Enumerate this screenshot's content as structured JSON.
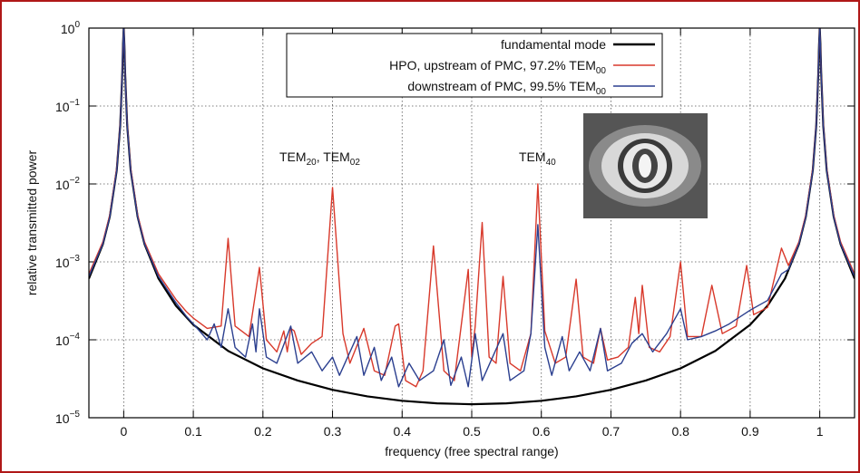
{
  "chart_data": {
    "type": "line",
    "y_label": "relative transmitted power",
    "x_label": "frequency (free spectral range)",
    "log_y": true,
    "grid": true,
    "xlim": [
      -0.05,
      1.05
    ],
    "ylim": [
      1e-05,
      1
    ],
    "xticks": [
      0,
      0.1,
      0.2,
      0.3,
      0.4,
      0.5,
      0.6,
      0.7,
      0.8,
      0.9,
      1
    ],
    "yticks": [
      {
        "value": 1e-05,
        "label": "10",
        "sup": "−5"
      },
      {
        "value": 0.0001,
        "label": "10",
        "sup": "−4"
      },
      {
        "value": 0.001,
        "label": "10",
        "sup": "−3"
      },
      {
        "value": 0.01,
        "label": "10",
        "sup": "−2"
      },
      {
        "value": 0.1,
        "label": "10",
        "sup": "−1"
      },
      {
        "value": 1,
        "label": "10",
        "sup": "0"
      }
    ],
    "legend_position": "top",
    "annotations": [
      {
        "parts": [
          {
            "text": "TEM"
          },
          {
            "sub": "20"
          },
          {
            "text": ", TEM"
          },
          {
            "sub": "02"
          }
        ]
      },
      {
        "parts": [
          {
            "text": "TEM"
          },
          {
            "sub": "40"
          }
        ]
      }
    ],
    "series": [
      {
        "name": "fundamental mode",
        "color": "#000000",
        "x": [
          -0.05,
          -0.03,
          -0.02,
          -0.01,
          -0.005,
          -0.002,
          -0.001,
          0,
          0.001,
          0.002,
          0.005,
          0.01,
          0.02,
          0.03,
          0.05,
          0.075,
          0.1,
          0.15,
          0.2,
          0.25,
          0.3,
          0.35,
          0.4,
          0.45,
          0.5,
          0.55,
          0.6,
          0.65,
          0.7,
          0.75,
          0.8,
          0.85,
          0.9,
          0.925,
          0.95,
          0.97,
          0.98,
          0.99,
          0.995,
          0.998,
          0.999,
          1,
          1.001,
          1.002,
          1.005,
          1.01,
          1.02,
          1.03,
          1.05
        ],
        "values": [
          0.00061,
          0.00168,
          0.0038,
          0.015,
          0.057,
          0.27,
          0.6,
          1,
          0.6,
          0.27,
          0.057,
          0.015,
          0.0038,
          0.00168,
          0.00061,
          0.000274,
          0.000156,
          7.2e-05,
          4.3e-05,
          3e-05,
          2.28e-05,
          1.88e-05,
          1.65e-05,
          1.53e-05,
          1.49e-05,
          1.53e-05,
          1.65e-05,
          1.88e-05,
          2.28e-05,
          3e-05,
          4.3e-05,
          7.2e-05,
          0.000156,
          0.000274,
          0.00061,
          0.00168,
          0.0038,
          0.015,
          0.057,
          0.27,
          0.6,
          1,
          0.6,
          0.27,
          0.057,
          0.015,
          0.0038,
          0.00168,
          0.00061
        ]
      },
      {
        "name": "HPO, upstream of PMC, 97.2% TEM",
        "name_sub": "00",
        "color": "#d8392b",
        "x": [
          -0.05,
          -0.03,
          -0.02,
          -0.01,
          -0.005,
          -0.002,
          -0.001,
          0,
          0.001,
          0.002,
          0.005,
          0.01,
          0.02,
          0.03,
          0.05,
          0.075,
          0.09,
          0.1,
          0.12,
          0.14,
          0.15,
          0.16,
          0.18,
          0.195,
          0.205,
          0.22,
          0.23,
          0.235,
          0.24,
          0.245,
          0.255,
          0.27,
          0.285,
          0.3,
          0.315,
          0.325,
          0.345,
          0.36,
          0.375,
          0.39,
          0.395,
          0.405,
          0.42,
          0.43,
          0.445,
          0.46,
          0.475,
          0.495,
          0.5,
          0.505,
          0.515,
          0.525,
          0.535,
          0.545,
          0.555,
          0.57,
          0.585,
          0.595,
          0.605,
          0.62,
          0.635,
          0.65,
          0.66,
          0.675,
          0.685,
          0.695,
          0.71,
          0.725,
          0.735,
          0.74,
          0.745,
          0.755,
          0.77,
          0.785,
          0.8,
          0.81,
          0.83,
          0.845,
          0.86,
          0.88,
          0.895,
          0.905,
          0.925,
          0.945,
          0.955,
          0.97,
          0.98,
          0.99,
          0.995,
          0.998,
          0.999,
          1,
          1.001,
          1.002,
          1.005,
          1.01,
          1.02,
          1.03,
          1.05
        ],
        "values": [
          0.0007,
          0.0018,
          0.004,
          0.016,
          0.06,
          0.28,
          0.6,
          1,
          0.6,
          0.28,
          0.06,
          0.016,
          0.004,
          0.0018,
          0.0007,
          0.00033,
          0.00023,
          0.00019,
          0.00014,
          0.00015,
          0.002,
          0.00015,
          0.00011,
          0.00085,
          0.0001,
          7e-05,
          0.00013,
          7e-05,
          0.00014,
          0.00013,
          6.5e-05,
          9e-05,
          0.00011,
          0.009,
          0.00012,
          5e-05,
          0.00014,
          4e-05,
          3.5e-05,
          0.00015,
          0.00016,
          3e-05,
          2.5e-05,
          4e-05,
          0.0016,
          4e-05,
          3e-05,
          0.0008,
          6e-05,
          0.00015,
          0.0032,
          6e-05,
          5e-05,
          0.00065,
          5e-05,
          4e-05,
          0.00012,
          0.01,
          0.00013,
          5e-05,
          6e-05,
          0.0006,
          6e-05,
          5e-05,
          0.00014,
          5.5e-05,
          6e-05,
          8e-05,
          0.00035,
          0.00012,
          0.0005,
          8e-05,
          7e-05,
          0.00011,
          0.001,
          0.00011,
          0.00011,
          0.0005,
          0.00012,
          0.00015,
          0.0009,
          0.00021,
          0.00026,
          0.0015,
          0.0009,
          0.0018,
          0.004,
          0.016,
          0.06,
          0.28,
          0.6,
          1,
          0.6,
          0.28,
          0.06,
          0.016,
          0.004,
          0.0018,
          0.0007
        ]
      },
      {
        "name": "downstream of PMC, 99.5% TEM",
        "name_sub": "00",
        "color": "#2b3f8f",
        "x": [
          -0.05,
          -0.03,
          -0.02,
          -0.01,
          -0.005,
          -0.002,
          -0.001,
          0,
          0.001,
          0.002,
          0.005,
          0.01,
          0.02,
          0.03,
          0.05,
          0.075,
          0.09,
          0.1,
          0.12,
          0.13,
          0.14,
          0.15,
          0.16,
          0.175,
          0.185,
          0.19,
          0.195,
          0.205,
          0.22,
          0.24,
          0.25,
          0.27,
          0.285,
          0.3,
          0.31,
          0.335,
          0.345,
          0.36,
          0.37,
          0.385,
          0.395,
          0.41,
          0.425,
          0.445,
          0.46,
          0.47,
          0.485,
          0.495,
          0.505,
          0.515,
          0.53,
          0.545,
          0.555,
          0.575,
          0.585,
          0.595,
          0.605,
          0.615,
          0.63,
          0.64,
          0.655,
          0.67,
          0.685,
          0.695,
          0.715,
          0.73,
          0.745,
          0.76,
          0.78,
          0.8,
          0.81,
          0.83,
          0.85,
          0.87,
          0.9,
          0.925,
          0.945,
          0.955,
          0.97,
          0.98,
          0.99,
          0.995,
          0.998,
          0.999,
          1,
          1.001,
          1.002,
          1.005,
          1.01,
          1.02,
          1.03,
          1.05
        ],
        "values": [
          0.00065,
          0.0017,
          0.0038,
          0.015,
          0.057,
          0.27,
          0.6,
          1,
          0.6,
          0.27,
          0.057,
          0.015,
          0.0038,
          0.0017,
          0.00065,
          0.0003,
          0.0002,
          0.00016,
          0.0001,
          0.00016,
          8e-05,
          0.00025,
          8e-05,
          6e-05,
          0.00016,
          7e-05,
          0.00025,
          6e-05,
          5e-05,
          0.00015,
          5e-05,
          7e-05,
          4e-05,
          6e-05,
          3.5e-05,
          0.00011,
          3.5e-05,
          8e-05,
          3e-05,
          6e-05,
          2.5e-05,
          5e-05,
          3e-05,
          4e-05,
          0.0001,
          2.6e-05,
          6e-05,
          2.5e-05,
          0.00012,
          3e-05,
          6e-05,
          0.00012,
          3e-05,
          4e-05,
          0.00012,
          0.003,
          8e-05,
          3.5e-05,
          0.00011,
          4e-05,
          7e-05,
          4e-05,
          0.00014,
          4e-05,
          5e-05,
          9e-05,
          0.00012,
          7e-05,
          0.00012,
          0.00025,
          0.0001,
          0.00011,
          0.00013,
          0.00016,
          0.00024,
          0.00032,
          0.0007,
          0.0008,
          0.0017,
          0.0038,
          0.015,
          0.057,
          0.27,
          0.6,
          1,
          0.6,
          0.27,
          0.057,
          0.015,
          0.0038,
          0.0017,
          0.00065
        ]
      }
    ]
  }
}
